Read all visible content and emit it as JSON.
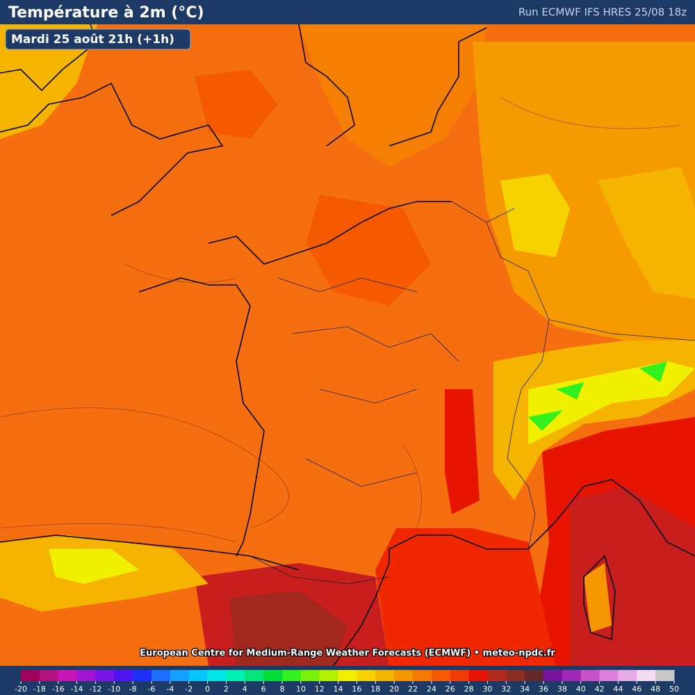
{
  "header": {
    "title": "Température à 2m (°C)",
    "run": "Run ECMWF IFS HRES 25/08 18z"
  },
  "date_label": "Mardi 25 août 21h (+1h)",
  "credit": "European Centre for Medium-Range Weather Forecasts (ECMWF) • meteo-npdc.fr",
  "legend": {
    "ticks": [
      -20,
      -18,
      -16,
      -14,
      -12,
      -10,
      -8,
      -6,
      -4,
      -2,
      0,
      2,
      4,
      6,
      8,
      10,
      12,
      14,
      16,
      18,
      20,
      22,
      24,
      26,
      28,
      30,
      32,
      34,
      36,
      38,
      40,
      42,
      44,
      46,
      48,
      50
    ],
    "colors": [
      "#a0005a",
      "#b4127e",
      "#c814b4",
      "#a014d2",
      "#7814e6",
      "#5014f0",
      "#1e32ff",
      "#1e6eff",
      "#14a0ff",
      "#00c8ff",
      "#00e6e6",
      "#00f0b4",
      "#00e678",
      "#00dc3c",
      "#32f01e",
      "#78f00a",
      "#b4f000",
      "#f0f000",
      "#f5d200",
      "#f5b400",
      "#f59600",
      "#f57800",
      "#f55a00",
      "#f03c00",
      "#e61400",
      "#b4281e",
      "#8c2d23",
      "#64282d",
      "#7814a0",
      "#a028b4",
      "#c850c8",
      "#dc82dc",
      "#e6aae6",
      "#f5dcf5",
      "#c8c8c8"
    ]
  }
}
